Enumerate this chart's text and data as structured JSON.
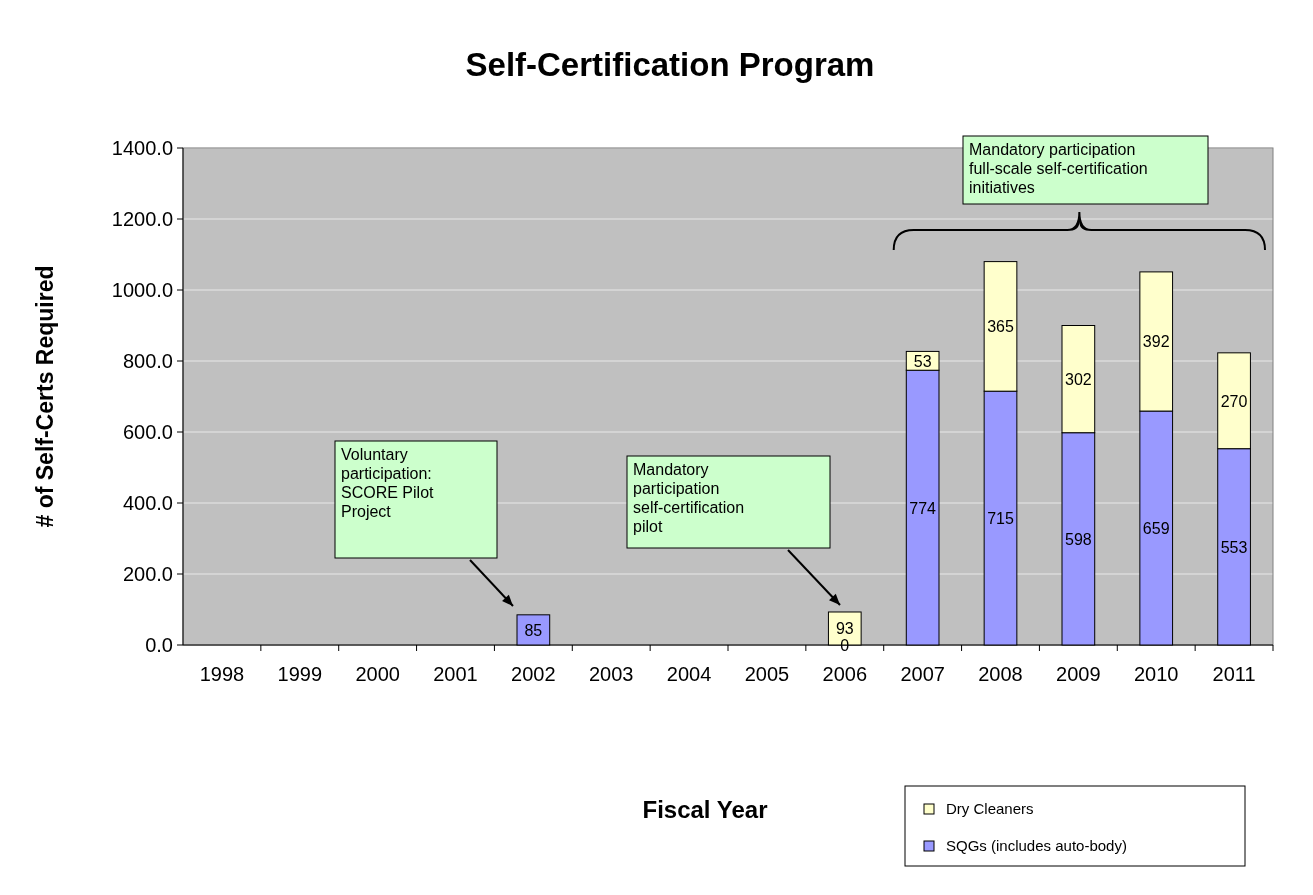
{
  "chart_data": {
    "type": "bar",
    "title": "Self-Certification Program",
    "xlabel": "Fiscal Year",
    "ylabel": "# of Self-Certs Required",
    "categories": [
      "1998",
      "1999",
      "2000",
      "2001",
      "2002",
      "2003",
      "2004",
      "2005",
      "2006",
      "2007",
      "2008",
      "2009",
      "2010",
      "2011"
    ],
    "stacked": true,
    "data_labels": true,
    "grid": "y",
    "legend": "bottom right",
    "ylim": [
      0,
      1400
    ],
    "yticks": [
      {
        "value": 0,
        "label": "0.0"
      },
      {
        "value": 200,
        "label": "200.0"
      },
      {
        "value": 400,
        "label": "400.0"
      },
      {
        "value": 600,
        "label": "600.0"
      },
      {
        "value": 800,
        "label": "800.0"
      },
      {
        "value": 1000,
        "label": "1000.0"
      },
      {
        "value": 1200,
        "label": "1200.0"
      },
      {
        "value": 1400,
        "label": "1400.0"
      }
    ],
    "series": [
      {
        "name": "SQGs (includes auto-body)",
        "color": "#9999ff",
        "values": [
          null,
          null,
          null,
          null,
          85,
          null,
          null,
          null,
          0,
          774,
          715,
          598,
          659,
          553
        ]
      },
      {
        "name": "Dry Cleaners",
        "color": "#ffffcc",
        "values": [
          null,
          null,
          null,
          null,
          null,
          null,
          null,
          null,
          93,
          53,
          365,
          302,
          392,
          270
        ]
      }
    ],
    "annotations": [
      "Voluntary participation: SCORE Pilot Project",
      "Mandatory participation self-certification pilot",
      "Mandatory participation full-scale self-certification initiatives"
    ]
  }
}
